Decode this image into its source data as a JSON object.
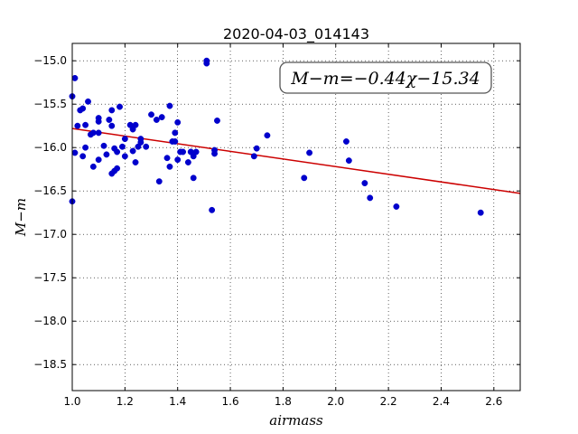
{
  "chart_data": {
    "type": "scatter",
    "title": "2020-04-03_014143",
    "xlabel": "airmass",
    "ylabel": "M−m",
    "xlim": [
      1.0,
      2.7
    ],
    "ylim": [
      -18.8,
      -14.8
    ],
    "y_inverted": true,
    "grid": true,
    "grid_style": "dotted",
    "x_ticks": [
      1.0,
      1.2,
      1.4,
      1.6,
      1.8,
      2.0,
      2.2,
      2.4,
      2.6
    ],
    "x_tick_labels": [
      "1.0",
      "1.2",
      "1.4",
      "1.6",
      "1.8",
      "2.0",
      "2.2",
      "2.4",
      "2.6"
    ],
    "y_ticks": [
      -15.0,
      -15.5,
      -16.0,
      -16.5,
      -17.0,
      -17.5,
      -18.0,
      -18.5
    ],
    "y_tick_labels": [
      "−15.0",
      "−15.5",
      "−16.0",
      "−16.5",
      "−17.0",
      "−17.5",
      "−18.0",
      "−18.5"
    ],
    "fit": {
      "slope": -0.44,
      "intercept": -15.34,
      "label": "M−m=−0.44χ−15.34",
      "legend_position": "top-right"
    },
    "colors": {
      "points": "#0000cc",
      "fit_line": "#cc0000"
    },
    "series": [
      {
        "x": [
          1.0,
          1.0,
          1.01,
          1.01,
          1.02,
          1.03,
          1.04,
          1.04,
          1.05,
          1.05,
          1.06,
          1.07,
          1.08,
          1.08,
          1.1,
          1.1,
          1.1,
          1.1,
          1.12,
          1.13,
          1.14,
          1.15,
          1.15,
          1.15,
          1.16,
          1.16,
          1.17,
          1.17,
          1.18,
          1.19,
          1.2,
          1.2,
          1.22,
          1.23,
          1.23,
          1.24,
          1.24,
          1.25,
          1.26,
          1.26,
          1.28,
          1.3,
          1.32,
          1.33,
          1.34,
          1.36,
          1.37,
          1.37,
          1.38,
          1.39,
          1.39,
          1.4,
          1.4,
          1.41,
          1.42,
          1.44,
          1.45,
          1.45,
          1.46,
          1.46,
          1.47,
          1.51,
          1.51,
          1.53,
          1.54,
          1.54,
          1.55,
          1.69,
          1.7,
          1.74,
          1.88,
          1.9,
          2.04,
          2.05,
          2.11,
          2.13,
          2.23,
          2.55
        ],
        "y": [
          -15.41,
          -16.62,
          -15.2,
          -16.06,
          -15.75,
          -15.57,
          -15.55,
          -16.1,
          -15.74,
          -16.0,
          -15.47,
          -15.85,
          -16.22,
          -15.83,
          -15.66,
          -15.7,
          -15.83,
          -16.14,
          -15.98,
          -16.08,
          -15.68,
          -15.57,
          -15.75,
          -16.3,
          -16.01,
          -16.27,
          -16.05,
          -16.24,
          -15.53,
          -15.99,
          -16.1,
          -15.9,
          -15.74,
          -15.79,
          -16.04,
          -15.74,
          -16.17,
          -15.99,
          -15.9,
          -15.94,
          -15.99,
          -15.62,
          -15.68,
          -16.39,
          -15.65,
          -16.12,
          -16.22,
          -15.52,
          -15.93,
          -15.93,
          -15.83,
          -15.71,
          -16.14,
          -16.05,
          -16.05,
          -16.17,
          -16.05,
          -16.05,
          -16.35,
          -16.1,
          -16.05,
          -15.0,
          -15.03,
          -16.72,
          -16.03,
          -16.07,
          -15.69,
          -16.1,
          -16.01,
          -15.86,
          -16.35,
          -16.06,
          -15.93,
          -16.15,
          -16.41,
          -16.58,
          -16.68,
          -16.75
        ]
      }
    ]
  }
}
